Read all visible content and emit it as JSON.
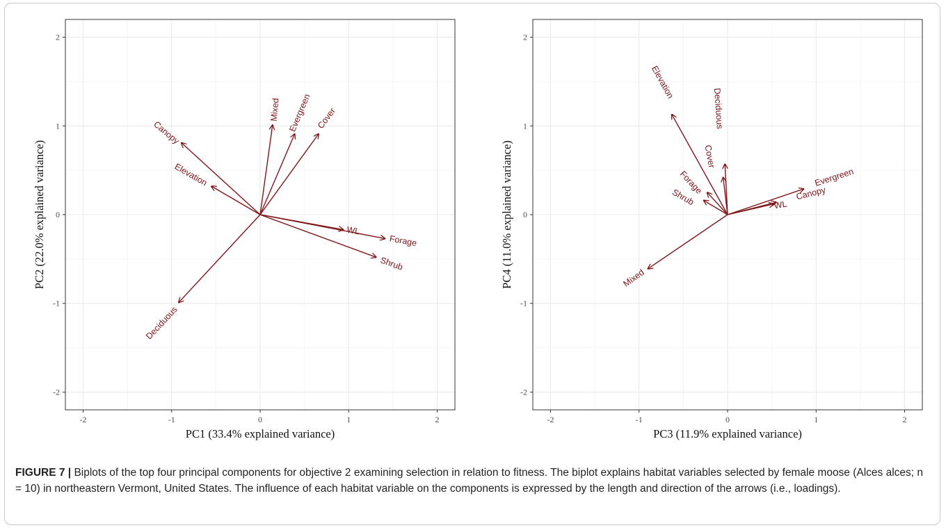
{
  "caption": {
    "label": "FIGURE 7 |",
    "text": "Biplots of the top four principal components for objective 2 examining selection in relation to fitness. The biplot explains habitat variables selected by female moose (Alces alces; n = 10) in northeastern Vermont, United States. The influence of each habitat variable on the components is expressed by the length and direction of the arrows (i.e., loadings)."
  },
  "colors": {
    "arrow": "#7f1518",
    "grid": "#ebebeb",
    "axis_text": "#4d4d4d"
  },
  "chart_data": [
    {
      "type": "scatter",
      "subtype": "biplot-arrows",
      "xlabel": "PC1 (33.4% explained variance)",
      "ylabel": "PC2 (22.0% explained variance)",
      "xlim": [
        -2.2,
        2.2
      ],
      "ylim": [
        -2.2,
        2.2
      ],
      "xticks": [
        -2,
        -1,
        0,
        1,
        2
      ],
      "yticks": [
        -2,
        -1,
        0,
        1,
        2
      ],
      "tick_labels_x": [
        "-2",
        "-1",
        "0",
        "1",
        "2"
      ],
      "tick_labels_y": [
        "-2",
        "-1",
        "0",
        "1",
        "2"
      ],
      "grid": true,
      "vectors": [
        {
          "name": "Mixed",
          "x": 0.14,
          "y": 1.01
        },
        {
          "name": "Evergreen",
          "x": 0.39,
          "y": 0.91
        },
        {
          "name": "Cover",
          "x": 0.66,
          "y": 0.91
        },
        {
          "name": "Canopy",
          "x": -0.89,
          "y": 0.81
        },
        {
          "name": "Elevation",
          "x": -0.55,
          "y": 0.32
        },
        {
          "name": "WL",
          "x": 0.94,
          "y": -0.17
        },
        {
          "name": "Forage",
          "x": 1.41,
          "y": -0.27
        },
        {
          "name": "Shrub",
          "x": 1.31,
          "y": -0.48
        },
        {
          "name": "Deciduous",
          "x": -0.92,
          "y": -0.99
        }
      ]
    },
    {
      "type": "scatter",
      "subtype": "biplot-arrows",
      "xlabel": "PC3 (11.9% explained variance)",
      "ylabel": "PC4 (11.0% explained variance)",
      "xlim": [
        -2.2,
        2.2
      ],
      "ylim": [
        -2.2,
        2.2
      ],
      "xticks": [
        -2,
        -1,
        0,
        1,
        2
      ],
      "yticks": [
        -2,
        -1,
        0,
        1,
        2
      ],
      "tick_labels_x": [
        "-2",
        "-1",
        "0",
        "1",
        "2"
      ],
      "tick_labels_y": [
        "-2",
        "-1",
        "0",
        "1",
        "2"
      ],
      "grid": true,
      "vectors": [
        {
          "name": "Elevation",
          "x": -0.63,
          "y": 1.13
        },
        {
          "name": "Deciduous",
          "x": -0.03,
          "y": 0.57
        },
        {
          "name": "Cover",
          "x": -0.05,
          "y": 0.42
        },
        {
          "name": "Forage",
          "x": -0.23,
          "y": 0.25
        },
        {
          "name": "Shrub",
          "x": -0.27,
          "y": 0.16
        },
        {
          "name": "WL",
          "x": 0.52,
          "y": 0.12
        },
        {
          "name": "Canopy",
          "x": 0.55,
          "y": 0.14
        },
        {
          "name": "Evergreen",
          "x": 0.86,
          "y": 0.29
        },
        {
          "name": "Mixed",
          "x": -0.9,
          "y": -0.61
        }
      ]
    }
  ]
}
